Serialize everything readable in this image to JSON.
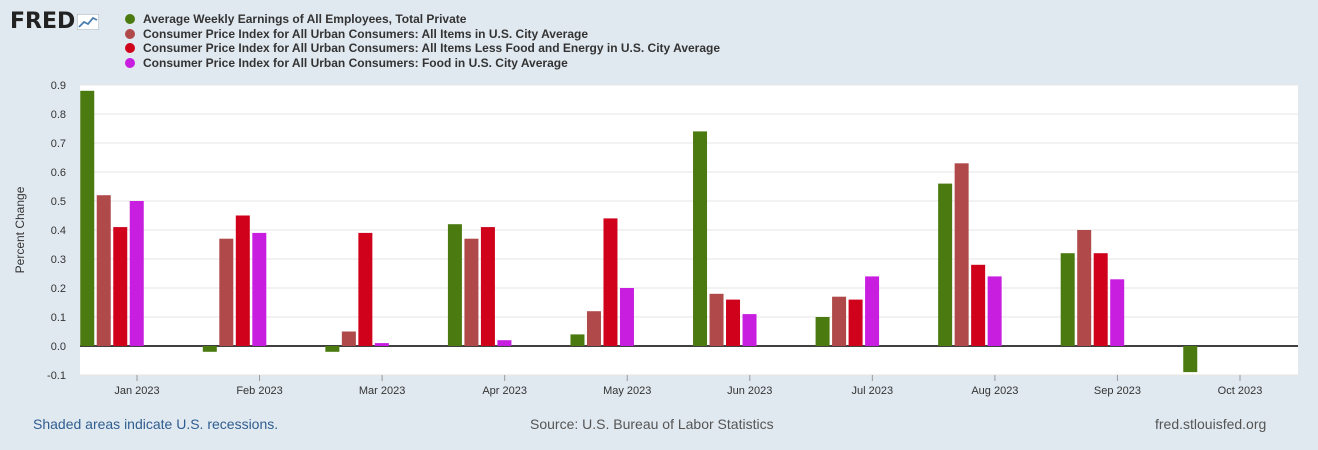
{
  "header": {
    "logo_text": "FRED",
    "logo_icon": "chart-line-icon"
  },
  "footer": {
    "left": "Shaded areas indicate U.S. recessions.",
    "center": "Source: U.S. Bureau of Labor Statistics",
    "right": "fred.stlouisfed.org"
  },
  "chart_data": {
    "type": "bar",
    "ylabel": "Percent Change",
    "ylim": [
      -0.1,
      0.9
    ],
    "yticks": [
      "-0.1",
      "0.0",
      "0.1",
      "0.2",
      "0.3",
      "0.4",
      "0.5",
      "0.6",
      "0.7",
      "0.8",
      "0.9"
    ],
    "categories": [
      "Jan 2023",
      "Feb 2023",
      "Mar 2023",
      "Apr 2023",
      "May 2023",
      "Jun 2023",
      "Jul 2023",
      "Aug 2023",
      "Sep 2023",
      "Oct 2023"
    ],
    "grid": true,
    "legend_position": "top",
    "series": [
      {
        "name": "Average Weekly Earnings of All Employees, Total Private",
        "color": "#4b7a10",
        "values": [
          0.88,
          -0.02,
          -0.02,
          0.42,
          0.04,
          0.74,
          0.1,
          0.56,
          0.32,
          -0.09
        ]
      },
      {
        "name": "Consumer Price Index for All Urban Consumers: All Items in U.S. City Average",
        "color": "#b04a4a",
        "values": [
          0.52,
          0.37,
          0.05,
          0.37,
          0.12,
          0.18,
          0.17,
          0.63,
          0.4,
          null
        ]
      },
      {
        "name": "Consumer Price Index for All Urban Consumers: All Items Less Food and Energy in U.S. City Average",
        "color": "#d0021b",
        "values": [
          0.41,
          0.45,
          0.39,
          0.41,
          0.44,
          0.16,
          0.16,
          0.28,
          0.32,
          null
        ]
      },
      {
        "name": "Consumer Price Index for All Urban Consumers: Food in U.S. City Average",
        "color": "#c81ee0",
        "values": [
          0.5,
          0.39,
          0.01,
          0.02,
          0.2,
          0.11,
          0.24,
          0.24,
          0.23,
          null
        ]
      }
    ]
  }
}
